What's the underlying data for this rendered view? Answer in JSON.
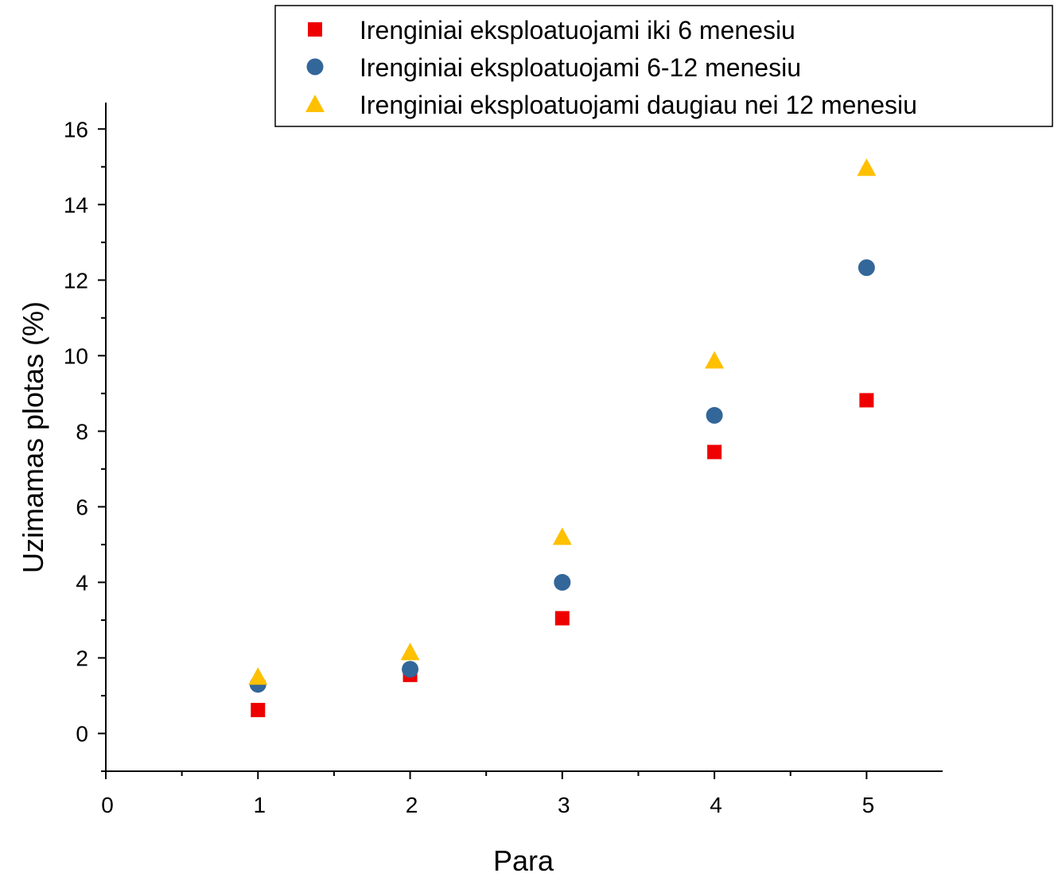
{
  "chart_data": {
    "type": "scatter",
    "title": "",
    "xlabel": "Para",
    "ylabel": "Uzimamas plotas (%)",
    "xlim": [
      0,
      5.5
    ],
    "ylim": [
      -1,
      16.7
    ],
    "x_ticks": [
      0,
      1,
      2,
      3,
      4,
      5
    ],
    "y_ticks": [
      0,
      2,
      4,
      6,
      8,
      10,
      12,
      14,
      16
    ],
    "grid": false,
    "legend_position": "top-right",
    "series": [
      {
        "name": "Irenginiai eksploatuojami iki 6 menesiu",
        "marker": "square",
        "color": "#ee0000",
        "x": [
          1,
          2,
          3,
          4,
          5
        ],
        "y": [
          0.62,
          1.55,
          3.05,
          7.45,
          8.82
        ]
      },
      {
        "name": "Irenginiai eksploatuojami 6-12 menesiu",
        "marker": "circle",
        "color": "#336699",
        "x": [
          1,
          2,
          3,
          4,
          5
        ],
        "y": [
          1.3,
          1.7,
          4.0,
          8.42,
          12.33
        ]
      },
      {
        "name": "Irenginiai eksploatuojami daugiau nei 12 menesiu",
        "marker": "triangle",
        "color": "#ffc000",
        "x": [
          1,
          2,
          3,
          4,
          5
        ],
        "y": [
          1.5,
          2.15,
          5.2,
          9.87,
          14.97
        ]
      }
    ]
  }
}
